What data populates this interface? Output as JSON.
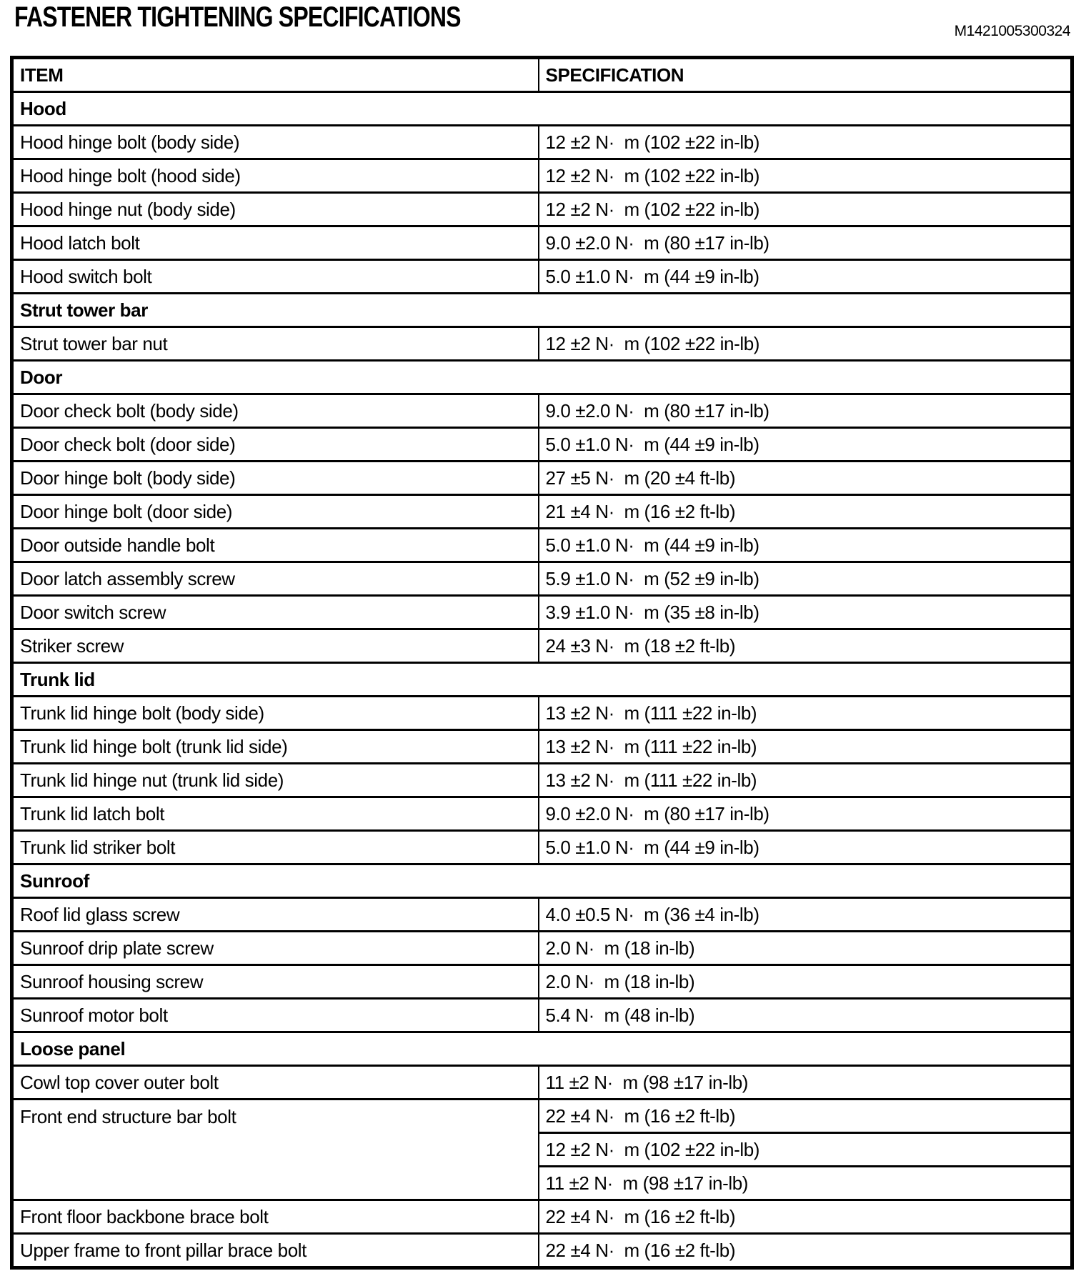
{
  "page": {
    "title": "FASTENER TIGHTENING SPECIFICATIONS",
    "doc_number": "M1421005300324"
  },
  "table": {
    "columns": [
      "ITEM",
      "SPECIFICATION"
    ],
    "sections": [
      {
        "name": "Hood",
        "rows": [
          {
            "item": "Hood hinge bolt (body side)",
            "specs": [
              "12 ±2 N·  m (102 ±22 in-lb)"
            ]
          },
          {
            "item": "Hood hinge bolt (hood side)",
            "specs": [
              "12 ±2 N·  m (102 ±22 in-lb)"
            ]
          },
          {
            "item": "Hood hinge nut (body side)",
            "specs": [
              "12 ±2 N·  m (102 ±22 in-lb)"
            ]
          },
          {
            "item": "Hood latch bolt",
            "specs": [
              "9.0 ±2.0 N·  m (80 ±17 in-lb)"
            ]
          },
          {
            "item": "Hood switch bolt",
            "specs": [
              "5.0 ±1.0 N·  m (44 ±9 in-lb)"
            ]
          }
        ]
      },
      {
        "name": "Strut tower bar",
        "rows": [
          {
            "item": "Strut tower bar nut",
            "specs": [
              "12 ±2 N·  m (102 ±22 in-lb)"
            ]
          }
        ]
      },
      {
        "name": "Door",
        "rows": [
          {
            "item": "Door check bolt (body side)",
            "specs": [
              "9.0 ±2.0 N·  m (80 ±17 in-lb)"
            ]
          },
          {
            "item": "Door check bolt (door side)",
            "specs": [
              "5.0 ±1.0 N·  m (44 ±9 in-lb)"
            ]
          },
          {
            "item": "Door hinge bolt (body side)",
            "specs": [
              "27 ±5 N·  m (20 ±4 ft-lb)"
            ]
          },
          {
            "item": "Door hinge bolt (door side)",
            "specs": [
              "21 ±4 N·  m (16 ±2 ft-lb)"
            ]
          },
          {
            "item": "Door outside handle bolt",
            "specs": [
              "5.0 ±1.0 N·  m (44 ±9 in-lb)"
            ]
          },
          {
            "item": "Door latch assembly screw",
            "specs": [
              "5.9 ±1.0 N·  m (52 ±9 in-lb)"
            ]
          },
          {
            "item": "Door switch screw",
            "specs": [
              "3.9 ±1.0 N·  m (35 ±8 in-lb)"
            ]
          },
          {
            "item": "Striker screw",
            "specs": [
              "24 ±3 N·  m (18 ±2 ft-lb)"
            ]
          }
        ]
      },
      {
        "name": "Trunk lid",
        "rows": [
          {
            "item": "Trunk lid hinge bolt (body side)",
            "specs": [
              "13 ±2 N·  m (111 ±22 in-lb)"
            ]
          },
          {
            "item": "Trunk lid hinge bolt (trunk lid side)",
            "specs": [
              "13 ±2 N·  m (111 ±22 in-lb)"
            ]
          },
          {
            "item": "Trunk lid hinge nut (trunk lid side)",
            "specs": [
              "13 ±2 N·  m (111 ±22 in-lb)"
            ]
          },
          {
            "item": "Trunk lid latch bolt",
            "specs": [
              "9.0 ±2.0 N·  m (80 ±17 in-lb)"
            ]
          },
          {
            "item": "Trunk lid striker bolt",
            "specs": [
              "5.0 ±1.0 N·  m (44 ±9 in-lb)"
            ]
          }
        ]
      },
      {
        "name": "Sunroof",
        "rows": [
          {
            "item": "Roof lid glass screw",
            "specs": [
              "4.0 ±0.5 N·  m (36 ±4 in-lb)"
            ]
          },
          {
            "item": "Sunroof drip plate screw",
            "specs": [
              "2.0 N·  m (18 in-lb)"
            ]
          },
          {
            "item": "Sunroof housing screw",
            "specs": [
              "2.0 N·  m (18 in-lb)"
            ]
          },
          {
            "item": "Sunroof motor bolt",
            "specs": [
              "5.4 N·  m (48 in-lb)"
            ]
          }
        ]
      },
      {
        "name": "Loose panel",
        "rows": [
          {
            "item": "Cowl top cover outer bolt",
            "specs": [
              "11 ±2 N·  m (98 ±17 in-lb)"
            ]
          },
          {
            "item": "Front end structure bar bolt",
            "specs": [
              "22 ±4 N·  m (16 ±2 ft-lb)",
              "12 ±2 N·  m (102 ±22 in-lb)",
              "11 ±2 N·  m (98 ±17 in-lb)"
            ]
          },
          {
            "item": "Front floor backbone brace bolt",
            "specs": [
              "22 ±4 N·  m (16 ±2 ft-lb)"
            ]
          },
          {
            "item": "Upper frame to front pillar brace bolt",
            "specs": [
              "22 ±4 N·  m (16 ±2 ft-lb)"
            ]
          }
        ]
      }
    ]
  }
}
